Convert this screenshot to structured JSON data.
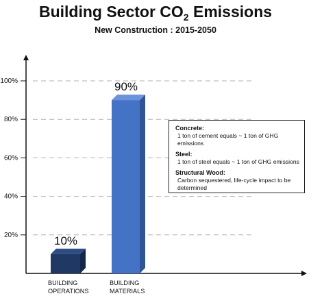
{
  "title": {
    "main": "Building Sector CO",
    "sub": "2",
    "suffix": " Emissions"
  },
  "subtitle": "New Construction : 2015-2050",
  "legend": [
    {
      "heading": "Concrete:",
      "text": "1 ton of cement equals ~ 1 ton of GHG emissions"
    },
    {
      "heading": "Steel:",
      "text": "1 ton of steel equals ~ 1 ton of GHG emissions"
    },
    {
      "heading": "Structural Wood:",
      "text": "Carbon sequestered, life-cycle impact to be determined"
    }
  ],
  "colors": {
    "operations_front": "#1f3864",
    "operations_side": "#142748",
    "operations_top": "#2e4d85",
    "materials_front": "#4472c4",
    "materials_side": "#2f5597",
    "materials_top": "#6a93dc",
    "gridline": "#b0b0b0",
    "axis": "#111111"
  },
  "chart_data": {
    "type": "bar",
    "title": "Building Sector CO2 Emissions",
    "subtitle": "New Construction : 2015-2050",
    "categories": [
      "BUILDING OPERATIONS",
      "BUILDING MATERIALS"
    ],
    "category_lines": [
      [
        "BUILDING",
        "OPERATIONS"
      ],
      [
        "BUILDING",
        "MATERIALS"
      ]
    ],
    "values": [
      10,
      90
    ],
    "data_labels": [
      "10%",
      "90%"
    ],
    "yticks": [
      "20%",
      "40%",
      "60%",
      "80%",
      "100%"
    ],
    "ytick_values": [
      20,
      40,
      60,
      80,
      100
    ],
    "ylim": [
      0,
      100
    ],
    "grid": true,
    "legend_placement": "right"
  }
}
